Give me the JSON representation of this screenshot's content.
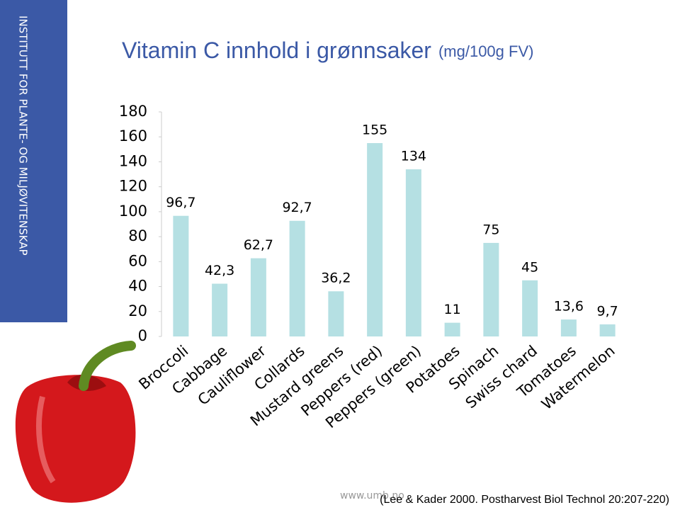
{
  "slide": {
    "side_text": "INSTITUTT FOR PLANTE- OG MILJØVITENSKAP",
    "footer_url": "www.umb.no",
    "citation": "(Lee & Kader 2000. Postharvest Biol Technol 20:207-220)"
  },
  "chart_data": {
    "type": "bar",
    "title": "Vitamin C innhold i grønnsaker",
    "subtitle": "(mg/100g FV)",
    "categories": [
      "Broccoli",
      "Cabbage",
      "Cauliflower",
      "Collards",
      "Mustard greens",
      "Peppers (red)",
      "Peppers (green)",
      "Potatoes",
      "Spinach",
      "Swiss chard",
      "Tomatoes",
      "Watermelon"
    ],
    "values": [
      96.7,
      42.3,
      62.7,
      92.7,
      36.2,
      155,
      134,
      11,
      75,
      45,
      13.6,
      9.7
    ],
    "value_labels": [
      "96,7",
      "42,3",
      "62,7",
      "92,7",
      "36,2",
      "155",
      "134",
      "11",
      "75",
      "45",
      "13,6",
      "9,7"
    ],
    "color": "#b5e0e3",
    "ylim": [
      0,
      180
    ],
    "yticks": [
      0,
      20,
      40,
      60,
      80,
      100,
      120,
      140,
      160,
      180
    ],
    "grid": false
  }
}
